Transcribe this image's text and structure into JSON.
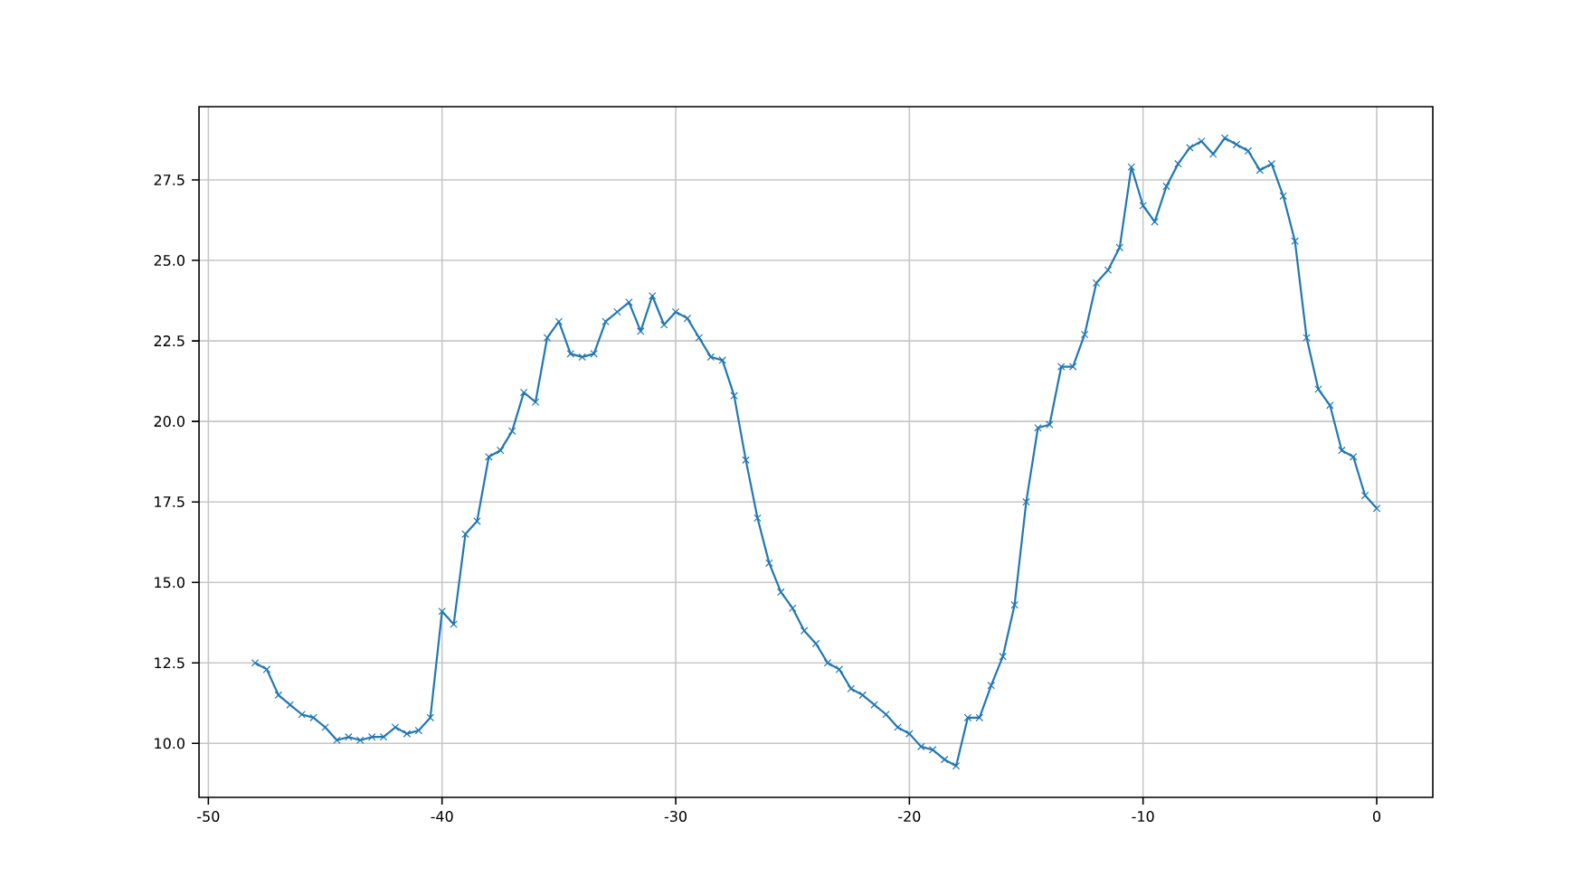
{
  "chart_data": {
    "type": "line",
    "x": [
      -48,
      -47.5,
      -47,
      -46.5,
      -46,
      -45.5,
      -45,
      -44.5,
      -44,
      -43.5,
      -43,
      -42.5,
      -42,
      -41.5,
      -41,
      -40.5,
      -40,
      -39.5,
      -39,
      -38.5,
      -38,
      -37.5,
      -37,
      -36.5,
      -36,
      -35.5,
      -35,
      -34.5,
      -34,
      -33.5,
      -33,
      -32.5,
      -32,
      -31.5,
      -31,
      -30.5,
      -30,
      -29.5,
      -29,
      -28.5,
      -28,
      -27.5,
      -27,
      -26.5,
      -26,
      -25.5,
      -25,
      -24.5,
      -24,
      -23.5,
      -23,
      -22.5,
      -22,
      -21.5,
      -21,
      -20.5,
      -20,
      -19.5,
      -19,
      -18.5,
      -18,
      -17.5,
      -17,
      -16.5,
      -16,
      -15.5,
      -15,
      -14.5,
      -14,
      -13.5,
      -13,
      -12.5,
      -12,
      -11.5,
      -11,
      -10.5,
      -10,
      -9.5,
      -9,
      -8.5,
      -8,
      -7.5,
      -7,
      -6.5,
      -6,
      -5.5,
      -5,
      -4.5,
      -4,
      -3.5,
      -3,
      -2.5,
      -2,
      -1.5,
      -1,
      -0.5,
      0
    ],
    "series": [
      {
        "color": "#1f77b4",
        "values": [
          12.5,
          12.3,
          11.5,
          11.2,
          10.9,
          10.8,
          10.5,
          10.1,
          10.2,
          10.1,
          10.2,
          10.2,
          10.5,
          10.3,
          10.4,
          10.8,
          14.1,
          13.7,
          16.5,
          16.9,
          18.9,
          19.1,
          19.7,
          20.9,
          20.6,
          22.6,
          23.1,
          22.1,
          22.0,
          22.1,
          23.1,
          23.4,
          23.7,
          22.8,
          23.9,
          23.0,
          23.4,
          23.2,
          22.6,
          22.0,
          21.9,
          20.8,
          18.8,
          17.0,
          15.6,
          14.7,
          14.2,
          13.5,
          13.1,
          12.5,
          12.3,
          11.7,
          11.5,
          11.2,
          10.9,
          10.5,
          10.3,
          9.9,
          9.8,
          9.5,
          9.3,
          10.8,
          10.8,
          11.8,
          12.7,
          14.3,
          17.5,
          19.8,
          19.9,
          21.7,
          21.7,
          22.7,
          24.3,
          24.7,
          25.4,
          27.9,
          26.7,
          26.2,
          27.3,
          28.0,
          28.5,
          28.7,
          28.3,
          28.8,
          28.6,
          28.4,
          27.8,
          28.0,
          27.0,
          25.6,
          22.6,
          21.0,
          20.5,
          19.1,
          18.9,
          17.7,
          17.3
        ]
      }
    ],
    "xlim": [
      -50.4,
      2.4
    ],
    "ylim": [
      8.325,
      29.775
    ],
    "xticks": [
      -50,
      -40,
      -30,
      -20,
      -10,
      0
    ],
    "yticks": [
      {
        "value": 10,
        "label": "10.0"
      },
      {
        "value": 12.5,
        "label": "12.5"
      },
      {
        "value": 15,
        "label": "15.0"
      },
      {
        "value": 17.5,
        "label": "17.5"
      },
      {
        "value": 20,
        "label": "20.0"
      },
      {
        "value": 22.5,
        "label": "22.5"
      },
      {
        "value": 25,
        "label": "25.0"
      },
      {
        "value": 27.5,
        "label": "27.5"
      }
    ],
    "grid": true,
    "marker": "cross",
    "line_style": "solid"
  }
}
